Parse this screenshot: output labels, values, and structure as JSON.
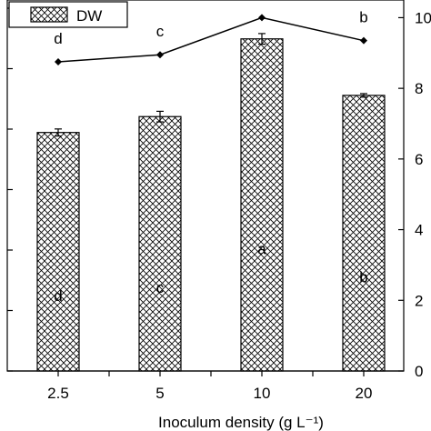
{
  "chart_data": {
    "type": "bar",
    "categories": [
      "2.5",
      "5",
      "10",
      "20"
    ],
    "series": [
      {
        "name": "DW",
        "kind": "bar",
        "axis": "right",
        "values": [
          6.75,
          7.2,
          9.4,
          7.8
        ],
        "errors": [
          0.1,
          0.15,
          0.15,
          0.05
        ],
        "letters": [
          "d",
          "c",
          "a",
          "b"
        ]
      },
      {
        "kind": "line",
        "axis": "right",
        "values": [
          8.75,
          8.95,
          10.0,
          9.35
        ],
        "errors": [
          0.03,
          0.06,
          0.03,
          0.03
        ],
        "letters": [
          "d",
          "c",
          "a",
          "b"
        ]
      }
    ],
    "xlabel": "Inoculum density (g L⁻¹)",
    "y2ticks": [
      "0",
      "2",
      "4",
      "6",
      "8",
      "10"
    ],
    "y2lim": [
      0,
      10.5
    ],
    "legend": "top-left",
    "grid": false,
    "bar_pattern": "crosshatch"
  }
}
